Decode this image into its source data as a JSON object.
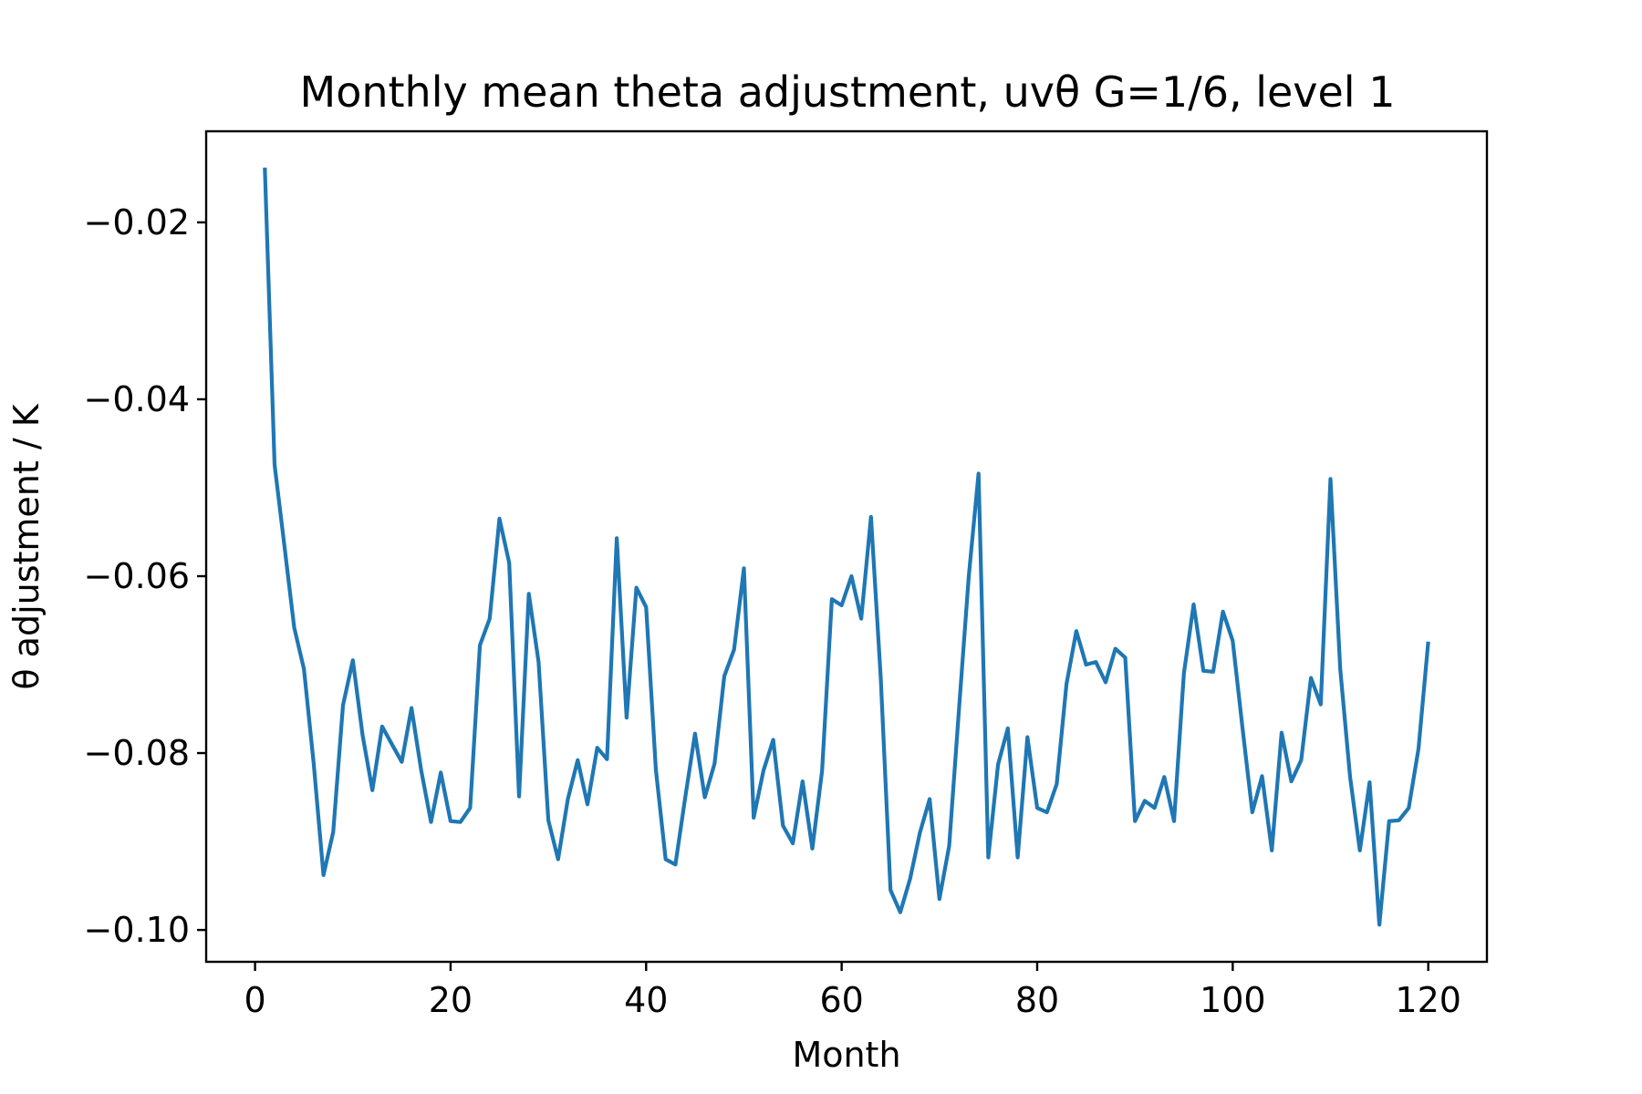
{
  "chart_data": {
    "type": "line",
    "title": "Monthly mean theta adjustment, uvθ G=1/6, level 1",
    "xlabel": "Month",
    "ylabel": "θ adjustment / K",
    "xlim": [
      -5,
      126
    ],
    "ylim": [
      -0.1036,
      -0.0097
    ],
    "x_ticks": [
      0,
      20,
      40,
      60,
      80,
      100,
      120
    ],
    "x_tick_labels": [
      "0",
      "20",
      "40",
      "60",
      "80",
      "100",
      "120"
    ],
    "y_ticks": [
      -0.1,
      -0.08,
      -0.06,
      -0.04,
      -0.02
    ],
    "y_tick_labels": [
      "−0.10",
      "−0.08",
      "−0.06",
      "−0.04",
      "−0.02"
    ],
    "grid": false,
    "series": [
      {
        "color": "#1f77b4",
        "x": [
          1,
          2,
          3,
          4,
          5,
          6,
          7,
          8,
          9,
          10,
          11,
          12,
          13,
          14,
          15,
          16,
          17,
          18,
          19,
          20,
          21,
          22,
          23,
          24,
          25,
          26,
          27,
          28,
          29,
          30,
          31,
          32,
          33,
          34,
          35,
          36,
          37,
          38,
          39,
          40,
          41,
          42,
          43,
          44,
          45,
          46,
          47,
          48,
          49,
          50,
          51,
          52,
          53,
          54,
          55,
          56,
          57,
          58,
          59,
          60,
          61,
          62,
          63,
          64,
          65,
          66,
          67,
          68,
          69,
          70,
          71,
          72,
          73,
          74,
          75,
          76,
          77,
          78,
          79,
          80,
          81,
          82,
          83,
          84,
          85,
          86,
          87,
          88,
          89,
          90,
          91,
          92,
          93,
          94,
          95,
          96,
          97,
          98,
          99,
          100,
          101,
          102,
          103,
          104,
          105,
          106,
          107,
          108,
          109,
          110,
          111,
          112,
          113,
          114,
          115,
          116,
          117,
          118,
          119,
          120
        ],
        "values": [
          -0.0138,
          -0.0474,
          -0.0565,
          -0.0658,
          -0.0705,
          -0.0812,
          -0.0938,
          -0.0889,
          -0.0746,
          -0.0695,
          -0.078,
          -0.0842,
          -0.077,
          -0.079,
          -0.081,
          -0.0749,
          -0.082,
          -0.0878,
          -0.0822,
          -0.0877,
          -0.0878,
          -0.0862,
          -0.0678,
          -0.0648,
          -0.0535,
          -0.0585,
          -0.0849,
          -0.062,
          -0.0697,
          -0.0876,
          -0.092,
          -0.0852,
          -0.0808,
          -0.0858,
          -0.0794,
          -0.0807,
          -0.0557,
          -0.076,
          -0.0613,
          -0.0635,
          -0.0819,
          -0.092,
          -0.0926,
          -0.085,
          -0.0778,
          -0.085,
          -0.0812,
          -0.0713,
          -0.0683,
          -0.0591,
          -0.0873,
          -0.082,
          -0.0785,
          -0.0882,
          -0.0902,
          -0.0832,
          -0.0908,
          -0.082,
          -0.0626,
          -0.0633,
          -0.06,
          -0.0648,
          -0.0533,
          -0.0715,
          -0.0955,
          -0.098,
          -0.0942,
          -0.089,
          -0.0852,
          -0.0965,
          -0.0905,
          -0.075,
          -0.06,
          -0.0484,
          -0.0918,
          -0.0813,
          -0.0772,
          -0.0918,
          -0.0782,
          -0.0862,
          -0.0867,
          -0.0835,
          -0.0722,
          -0.0662,
          -0.07,
          -0.0697,
          -0.072,
          -0.0682,
          -0.0692,
          -0.0877,
          -0.0854,
          -0.0862,
          -0.0827,
          -0.0877,
          -0.071,
          -0.0632,
          -0.0707,
          -0.0708,
          -0.064,
          -0.0673,
          -0.0772,
          -0.0867,
          -0.0826,
          -0.091,
          -0.0777,
          -0.0832,
          -0.0808,
          -0.0715,
          -0.0745,
          -0.049,
          -0.0705,
          -0.0827,
          -0.091,
          -0.0833,
          -0.0994,
          -0.0877,
          -0.0876,
          -0.0862,
          -0.0795,
          -0.0674
        ]
      }
    ]
  }
}
